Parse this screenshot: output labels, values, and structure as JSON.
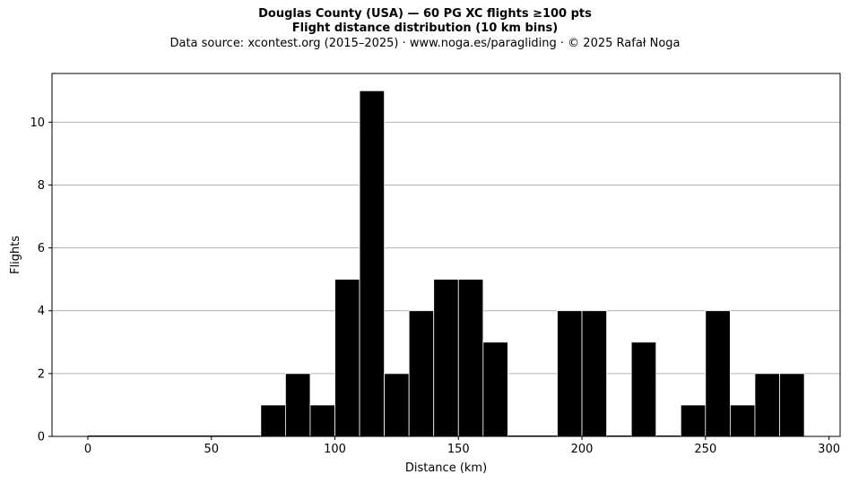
{
  "chart_data": {
    "type": "bar",
    "title": "Douglas County (USA)  —  60 PG XC flights ≥100 pts",
    "title_line2": "Flight distance distribution (10 km bins)",
    "subtitle": "Data source: xcontest.org (2015–2025)  ·  www.noga.es/paragliding  ·  © 2025 Rafał Noga",
    "xlabel": "Distance (km)",
    "ylabel": "Flights",
    "xlim": [
      -14.5,
      304.5
    ],
    "ylim": [
      0,
      11.55
    ],
    "xticks": [
      0,
      50,
      100,
      150,
      200,
      250,
      300
    ],
    "yticks": [
      0,
      2,
      4,
      6,
      8,
      10
    ],
    "grid": "horizontal",
    "bar_color": "#000000",
    "edge_color": "#ffffff",
    "grid_color": "#b0b0b0",
    "bin_width": 10,
    "bins": [
      {
        "x0": 70,
        "count": 1
      },
      {
        "x0": 80,
        "count": 2
      },
      {
        "x0": 90,
        "count": 1
      },
      {
        "x0": 100,
        "count": 5
      },
      {
        "x0": 110,
        "count": 11
      },
      {
        "x0": 120,
        "count": 2
      },
      {
        "x0": 130,
        "count": 4
      },
      {
        "x0": 140,
        "count": 5
      },
      {
        "x0": 150,
        "count": 5
      },
      {
        "x0": 160,
        "count": 3
      },
      {
        "x0": 190,
        "count": 4
      },
      {
        "x0": 200,
        "count": 4
      },
      {
        "x0": 220,
        "count": 3
      },
      {
        "x0": 240,
        "count": 1
      },
      {
        "x0": 250,
        "count": 4
      },
      {
        "x0": 260,
        "count": 1
      },
      {
        "x0": 270,
        "count": 2
      },
      {
        "x0": 280,
        "count": 2
      }
    ]
  }
}
